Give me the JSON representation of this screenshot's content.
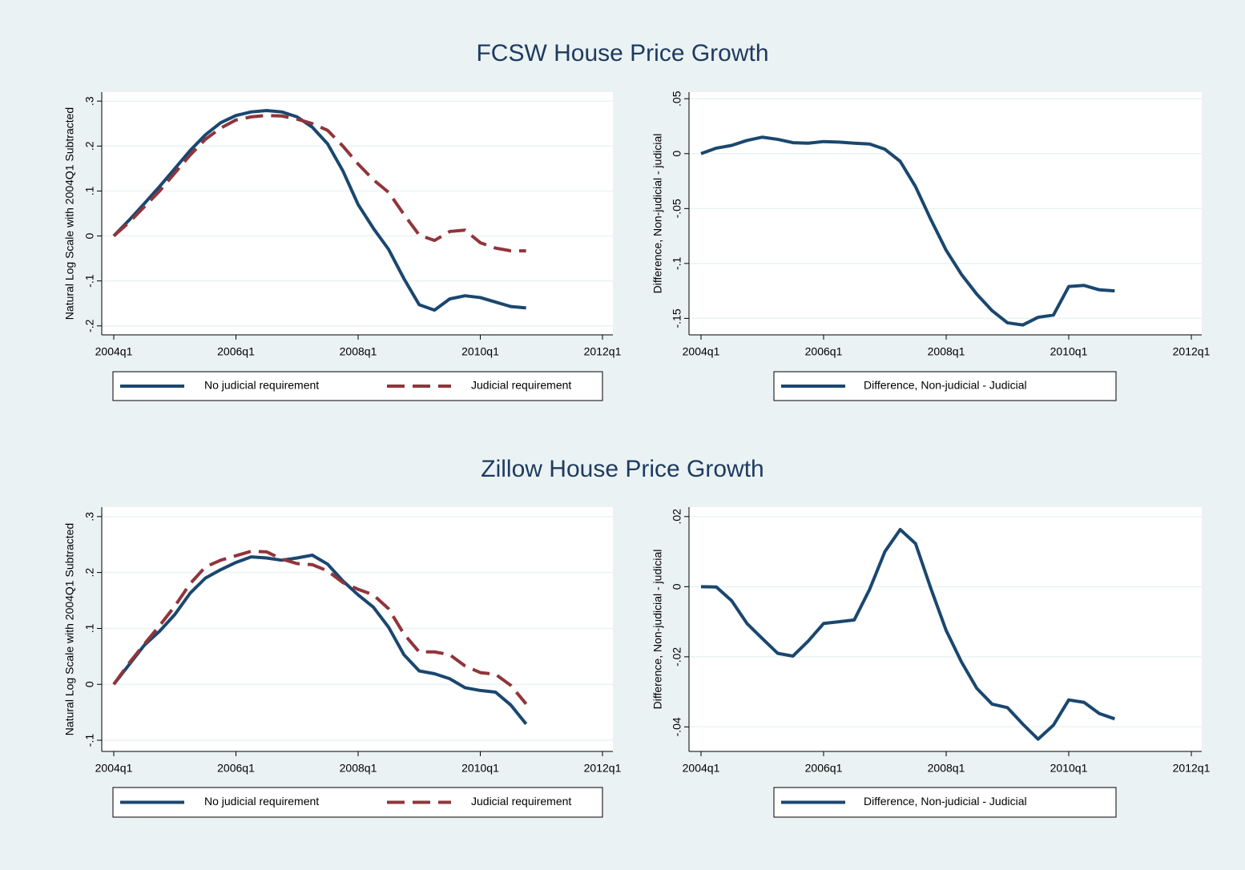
{
  "chart_data": [
    {
      "type": "line",
      "title": "FCSW House Price Growth",
      "y_label": "Natural Log Scale with 2004Q1 Subtracted",
      "grid": true,
      "x": [
        "2004q1",
        "2004q2",
        "2004q3",
        "2004q4",
        "2005q1",
        "2005q2",
        "2005q3",
        "2005q4",
        "2006q1",
        "2006q2",
        "2006q3",
        "2006q4",
        "2007q1",
        "2007q2",
        "2007q3",
        "2007q4",
        "2008q1",
        "2008q2",
        "2008q3",
        "2008q4",
        "2009q1",
        "2009q2",
        "2009q3",
        "2009q4",
        "2010q1",
        "2010q2",
        "2010q3",
        "2010q4"
      ],
      "xlim": [
        "2004q1",
        "2012q1"
      ],
      "xticks": [
        "2004q1",
        "2006q1",
        "2008q1",
        "2010q1",
        "2012q1"
      ],
      "ylim": [
        -0.22,
        0.32
      ],
      "yticks": [
        {
          "value": -0.2,
          "label": "-.2"
        },
        {
          "value": -0.1,
          "label": "-.1"
        },
        0,
        {
          "value": 0.1,
          "label": ".1"
        },
        {
          "value": 0.2,
          "label": ".2"
        },
        {
          "value": 0.3,
          "label": ".3"
        }
      ],
      "series": [
        {
          "name": "No judicial requirement",
          "color": "#1a476f",
          "dash": false,
          "values": [
            0,
            0.035,
            0.072,
            0.11,
            0.15,
            0.19,
            0.225,
            0.252,
            0.268,
            0.276,
            0.279,
            0.276,
            0.265,
            0.242,
            0.205,
            0.145,
            0.07,
            0.017,
            -0.03,
            -0.095,
            -0.153,
            -0.165,
            -0.14,
            -0.133,
            -0.137,
            -0.147,
            -0.157,
            -0.16
          ]
        },
        {
          "name": "Judicial requirement",
          "color": "#90353b",
          "dash": true,
          "values": [
            0,
            0.03,
            0.065,
            0.1,
            0.14,
            0.18,
            0.215,
            0.24,
            0.258,
            0.265,
            0.268,
            0.267,
            0.26,
            0.25,
            0.235,
            0.2,
            0.16,
            0.125,
            0.097,
            0.048,
            0.002,
            -0.01,
            0.01,
            0.013,
            -0.015,
            -0.027,
            -0.033,
            -0.033
          ]
        }
      ]
    },
    {
      "type": "line",
      "y_label": "Difference, Non-judicial - judicial",
      "grid": true,
      "x": [
        "2004q1",
        "2004q2",
        "2004q3",
        "2004q4",
        "2005q1",
        "2005q2",
        "2005q3",
        "2005q4",
        "2006q1",
        "2006q2",
        "2006q3",
        "2006q4",
        "2007q1",
        "2007q2",
        "2007q3",
        "2007q4",
        "2008q1",
        "2008q2",
        "2008q3",
        "2008q4",
        "2009q1",
        "2009q2",
        "2009q3",
        "2009q4",
        "2010q1",
        "2010q2",
        "2010q3",
        "2010q4"
      ],
      "xlim": [
        "2004q1",
        "2012q1"
      ],
      "xticks": [
        "2004q1",
        "2006q1",
        "2008q1",
        "2010q1",
        "2012q1"
      ],
      "ylim": [
        -0.165,
        0.056
      ],
      "yticks": [
        {
          "value": -0.15,
          "label": "-.15"
        },
        {
          "value": -0.1,
          "label": "-.1"
        },
        {
          "value": -0.05,
          "label": "-.05"
        },
        0,
        {
          "value": 0.05,
          "label": ".05"
        }
      ],
      "series": [
        {
          "name": "Difference, Non-judicial - Judicial",
          "color": "#1a476f",
          "dash": false,
          "values": [
            0,
            0.005,
            0.0075,
            0.012,
            0.015,
            0.013,
            0.01,
            0.0095,
            0.011,
            0.0105,
            0.0095,
            0.0088,
            0.004,
            -0.007,
            -0.03,
            -0.06,
            -0.088,
            -0.11,
            -0.128,
            -0.143,
            -0.154,
            -0.156,
            -0.149,
            -0.147,
            -0.121,
            -0.12,
            -0.124,
            -0.125
          ]
        }
      ]
    },
    {
      "type": "line",
      "title": "Zillow House Price Growth",
      "y_label": "Natural Log Scale with 2004Q1 Subtracted",
      "grid": true,
      "x": [
        "2004q1",
        "2004q2",
        "2004q3",
        "2004q4",
        "2005q1",
        "2005q2",
        "2005q3",
        "2005q4",
        "2006q1",
        "2006q2",
        "2006q3",
        "2006q4",
        "2007q1",
        "2007q2",
        "2007q3",
        "2007q4",
        "2008q1",
        "2008q2",
        "2008q3",
        "2008q4",
        "2009q1",
        "2009q2",
        "2009q3",
        "2009q4",
        "2010q1",
        "2010q2",
        "2010q3",
        "2010q4"
      ],
      "xlim": [
        "2004q1",
        "2012q1"
      ],
      "xticks": [
        "2004q1",
        "2006q1",
        "2008q1",
        "2010q1",
        "2012q1"
      ],
      "ylim": [
        -0.12,
        0.317
      ],
      "yticks": [
        {
          "value": -0.1,
          "label": "-.1"
        },
        0,
        {
          "value": 0.1,
          "label": ".1"
        },
        {
          "value": 0.2,
          "label": ".2"
        },
        {
          "value": 0.3,
          "label": ".3"
        }
      ],
      "series": [
        {
          "name": "No judicial requirement",
          "color": "#1a476f",
          "dash": false,
          "values": [
            0,
            0.035,
            0.07,
            0.095,
            0.125,
            0.163,
            0.19,
            0.205,
            0.218,
            0.228,
            0.226,
            0.222,
            0.226,
            0.231,
            0.215,
            0.185,
            0.16,
            0.138,
            0.102,
            0.053,
            0.024,
            0.019,
            0.01,
            -0.006,
            -0.011,
            -0.014,
            -0.037,
            -0.071
          ]
        },
        {
          "name": "Judicial requirement",
          "color": "#90353b",
          "dash": true,
          "values": [
            0,
            0.038,
            0.072,
            0.105,
            0.14,
            0.18,
            0.21,
            0.222,
            0.23,
            0.238,
            0.237,
            0.224,
            0.216,
            0.214,
            0.203,
            0.182,
            0.17,
            0.16,
            0.135,
            0.09,
            0.058,
            0.058,
            0.053,
            0.033,
            0.021,
            0.018,
            -0.002,
            -0.035
          ]
        }
      ]
    },
    {
      "type": "line",
      "y_label": "Difference, Non-judicial - judicial",
      "grid": true,
      "x": [
        "2004q1",
        "2004q2",
        "2004q3",
        "2004q4",
        "2005q1",
        "2005q2",
        "2005q3",
        "2005q4",
        "2006q1",
        "2006q2",
        "2006q3",
        "2006q4",
        "2007q1",
        "2007q2",
        "2007q3",
        "2007q4",
        "2008q1",
        "2008q2",
        "2008q3",
        "2008q4",
        "2009q1",
        "2009q2",
        "2009q3",
        "2009q4",
        "2010q1",
        "2010q2",
        "2010q3",
        "2010q4"
      ],
      "xlim": [
        "2004q1",
        "2012q1"
      ],
      "xticks": [
        "2004q1",
        "2006q1",
        "2008q1",
        "2010q1",
        "2012q1"
      ],
      "ylim": [
        -0.047,
        0.0227
      ],
      "yticks": [
        {
          "value": -0.04,
          "label": "-.04"
        },
        {
          "value": -0.02,
          "label": "-.02"
        },
        0,
        {
          "value": 0.02,
          "label": ".02"
        }
      ],
      "series": [
        {
          "name": "Difference, Non-judicial - Judicial",
          "color": "#1a476f",
          "dash": false,
          "values": [
            0,
            -0.0001,
            -0.004,
            -0.0105,
            -0.0148,
            -0.019,
            -0.0198,
            -0.0155,
            -0.0105,
            -0.01,
            -0.0095,
            -0.0008,
            0.01,
            0.0163,
            0.0123,
            -0.0005,
            -0.0125,
            -0.0215,
            -0.029,
            -0.0335,
            -0.0345,
            -0.0392,
            -0.0435,
            -0.0395,
            -0.0323,
            -0.033,
            -0.0362,
            -0.0377
          ]
        }
      ]
    }
  ]
}
